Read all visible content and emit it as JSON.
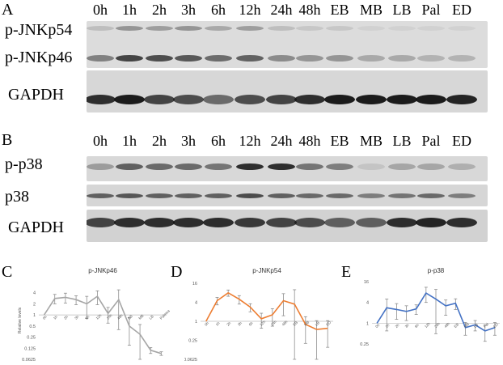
{
  "blot_a": {
    "letter": "A",
    "lanes": [
      "0h",
      "1h",
      "2h",
      "3h",
      "6h",
      "12h",
      "24h",
      "48h",
      "EB",
      "MB",
      "LB",
      "Pal",
      "ED"
    ],
    "rows": [
      {
        "label": "p-JNKp54"
      },
      {
        "label": "p-JNKp46"
      },
      {
        "label": "GAPDH"
      }
    ]
  },
  "blot_b": {
    "letter": "B",
    "lanes": [
      "0h",
      "1h",
      "2h",
      "3h",
      "6h",
      "12h",
      "24h",
      "48h",
      "EB",
      "MB",
      "LB",
      "Pal",
      "ED"
    ],
    "rows": [
      {
        "label": "p-p38"
      },
      {
        "label": "p38"
      },
      {
        "label": "GAPDH"
      }
    ]
  },
  "chart_data": [
    {
      "panel": "C",
      "type": "line",
      "title": "p-JNKp46",
      "ylabel": "Relative levels",
      "yscale": "log2",
      "yticks": [
        "4",
        "2",
        "1",
        "0.5",
        "0.25",
        "0.125",
        "0.0625"
      ],
      "ylim": [
        0.0625,
        8
      ],
      "categories": [
        "0h",
        "1h",
        "2h",
        "3h",
        "6h",
        "12h",
        "24h",
        "48h",
        "EB",
        "MB",
        "LB",
        "Palmea"
      ],
      "color": "#a6a6a6",
      "series": [
        {
          "values": [
            1,
            2.8,
            3.0,
            2.6,
            2.0,
            3.2,
            1.1,
            2.6,
            0.5,
            0.3,
            0.11,
            0.09
          ]
        }
      ],
      "errors": [
        0,
        0.8,
        0.9,
        0.7,
        1.2,
        1.3,
        0.5,
        2.2,
        0.35,
        0.25,
        0.02,
        0.01
      ]
    },
    {
      "panel": "D",
      "type": "line",
      "title": "p-JNKp54",
      "ylabel": "Relative levels",
      "yscale": "log2",
      "yticks": [
        "16",
        "4",
        "1",
        "0.25",
        "0.0625"
      ],
      "ylim": [
        0.0625,
        16
      ],
      "categories": [
        "0h",
        "1h",
        "2h",
        "3h",
        "6h",
        "12h",
        "24h",
        "48h",
        "EB",
        "MB",
        "LB",
        "ED"
      ],
      "color": "#ed7d31",
      "series": [
        {
          "values": [
            1,
            4.5,
            8.0,
            5.0,
            2.8,
            1.2,
            1.6,
            4.5,
            3.5,
            0.8,
            0.55,
            0.6
          ]
        }
      ],
      "errors": [
        0,
        1.2,
        1.8,
        1.5,
        0.8,
        0.6,
        0.9,
        3.0,
        6.5,
        0.6,
        0.5,
        0.45
      ]
    },
    {
      "panel": "E",
      "type": "line",
      "title": "p-p38",
      "ylabel": "Relative levels",
      "yscale": "log2",
      "yticks": [
        "16",
        "4",
        "1",
        "0.25"
      ],
      "ylim": [
        0.125,
        16
      ],
      "categories": [
        "0h",
        "1h",
        "2h",
        "3h",
        "6h",
        "12h",
        "24h",
        "48h",
        "EB",
        "MB",
        "LB",
        "Pal",
        "ED"
      ],
      "color": "#4472c4",
      "series": [
        {
          "values": [
            1,
            2.8,
            2.5,
            2.2,
            2.6,
            7.5,
            5.0,
            3.2,
            3.8,
            0.75,
            0.9,
            0.6,
            0.75
          ]
        }
      ],
      "errors": [
        0,
        2.2,
        1.2,
        1.0,
        0.8,
        3.5,
        4.5,
        1.5,
        1.3,
        0.3,
        0.3,
        0.3,
        0.3
      ]
    }
  ]
}
